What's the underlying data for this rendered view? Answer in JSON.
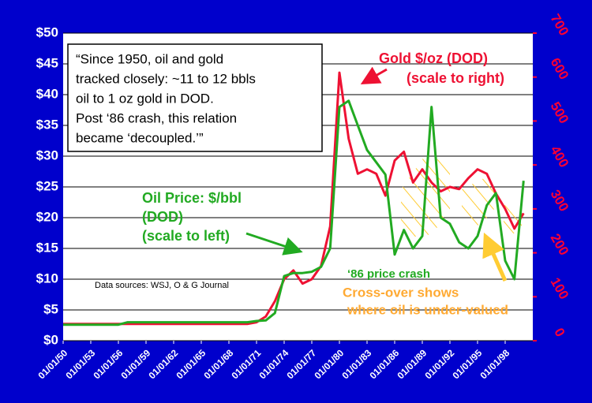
{
  "chart_data": {
    "type": "line",
    "x": [
      1950,
      1951,
      1952,
      1953,
      1954,
      1955,
      1956,
      1957,
      1958,
      1959,
      1960,
      1961,
      1962,
      1963,
      1964,
      1965,
      1966,
      1967,
      1968,
      1969,
      1970,
      1971,
      1972,
      1973,
      1974,
      1975,
      1976,
      1977,
      1978,
      1979,
      1980,
      1981,
      1982,
      1983,
      1984,
      1985,
      1986,
      1987,
      1988,
      1989,
      1990,
      1991,
      1992,
      1993,
      1994,
      1995,
      1996,
      1997,
      1998,
      1999,
      2000
    ],
    "series": [
      {
        "name": "Oil Price: $/bbl",
        "color": "#22aa22",
        "values": [
          2.6,
          2.6,
          2.6,
          2.6,
          2.6,
          2.6,
          2.6,
          3,
          3,
          3,
          3,
          3,
          3,
          3,
          3,
          3,
          3,
          3,
          3,
          3,
          3,
          3.2,
          3.3,
          4.5,
          10.5,
          11,
          11,
          11.2,
          12,
          15,
          38,
          39,
          35,
          31,
          29,
          27,
          14,
          18,
          15,
          17,
          38,
          20,
          19,
          16,
          15,
          17,
          22,
          24,
          13,
          10,
          26
        ]
      },
      {
        "name": "Gold $/oz (DOD)",
        "color": "#ee1133",
        "axis": "y2",
        "values": [
          38,
          38,
          38,
          38,
          38,
          38,
          38,
          38,
          38,
          38,
          38,
          38,
          38,
          38,
          38,
          38,
          38,
          38,
          38,
          38,
          38,
          42,
          55,
          90,
          140,
          160,
          130,
          140,
          170,
          260,
          610,
          460,
          380,
          390,
          380,
          330,
          410,
          430,
          360,
          390,
          360,
          340,
          350,
          345,
          370,
          390,
          380,
          335,
          300,
          255,
          290
        ]
      }
    ],
    "xlim": [
      1950,
      2001
    ],
    "xticks": [
      {
        "value": 1950,
        "label": "01/01/50"
      },
      {
        "value": 1953,
        "label": "01/01/53"
      },
      {
        "value": 1956,
        "label": "01/01/56"
      },
      {
        "value": 1959,
        "label": "01/01/59"
      },
      {
        "value": 1962,
        "label": "01/01/62"
      },
      {
        "value": 1965,
        "label": "01/01/65"
      },
      {
        "value": 1968,
        "label": "01/01/68"
      },
      {
        "value": 1971,
        "label": "01/01/71"
      },
      {
        "value": 1974,
        "label": "01/01/74"
      },
      {
        "value": 1977,
        "label": "01/01/77"
      },
      {
        "value": 1980,
        "label": "01/01/80"
      },
      {
        "value": 1983,
        "label": "01/01/83"
      },
      {
        "value": 1986,
        "label": "01/01/86"
      },
      {
        "value": 1989,
        "label": "01/01/89"
      },
      {
        "value": 1992,
        "label": "01/01/92"
      },
      {
        "value": 1995,
        "label": "01/01/95"
      },
      {
        "value": 1998,
        "label": "01/01/98"
      }
    ],
    "ylim": [
      0,
      50
    ],
    "yticks": [
      {
        "value": 0,
        "label": "$0"
      },
      {
        "value": 5,
        "label": "$5"
      },
      {
        "value": 10,
        "label": "$10"
      },
      {
        "value": 15,
        "label": "$15"
      },
      {
        "value": 20,
        "label": "$20"
      },
      {
        "value": 25,
        "label": "$25"
      },
      {
        "value": 30,
        "label": "$30"
      },
      {
        "value": 35,
        "label": "$35"
      },
      {
        "value": 40,
        "label": "$40"
      },
      {
        "value": 45,
        "label": "$45"
      },
      {
        "value": 50,
        "label": "$50"
      }
    ],
    "y2lim": [
      0,
      700
    ],
    "y2ticks": [
      0,
      100,
      200,
      300,
      400,
      500,
      600,
      700
    ],
    "grid": true,
    "annotations": {
      "quote": [
        "“Since 1950, oil and gold",
        "tracked closely: ~11 to 12 bbls",
        "oil to 1 oz gold in DOD.",
        "Post ‘86 crash, this relation",
        "became ‘decoupled.’”"
      ],
      "gold_scale": "(scale to right)",
      "oil_dod": "(DOD)",
      "oil_scale": "(scale to left)",
      "sources": "Data sources: WSJ,  O & G Journal",
      "crash": "‘86 price crash",
      "crossover_1": "Cross-over shows",
      "crossover_2": "where oil is under-valued"
    }
  }
}
